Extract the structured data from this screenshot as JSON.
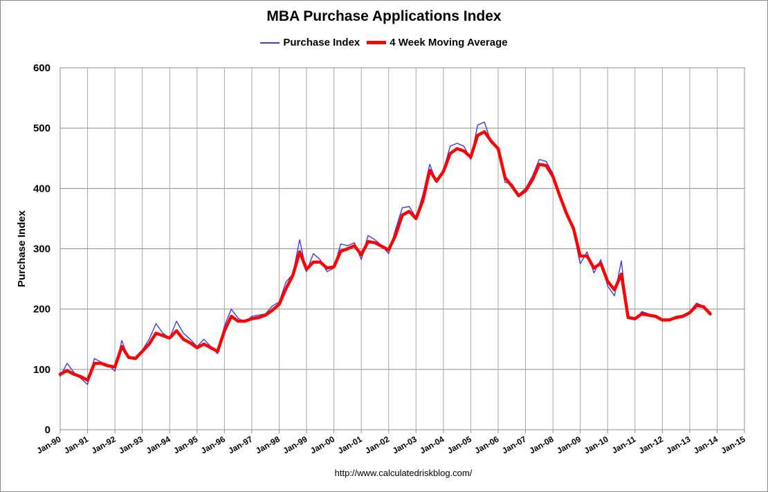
{
  "chart_data": {
    "type": "line",
    "title": "MBA Purchase Applications Index",
    "ylabel": "Purchase Index",
    "xlabel": "",
    "ylim": [
      0,
      600
    ],
    "yticks": [
      0,
      100,
      200,
      300,
      400,
      500,
      600
    ],
    "xlim": [
      1990.0,
      2015.0
    ],
    "xtick_labels": [
      "Jan-90",
      "Jan-91",
      "Jan-92",
      "Jan-93",
      "Jan-94",
      "Jan-95",
      "Jan-96",
      "Jan-97",
      "Jan-98",
      "Jan-99",
      "Jan-00",
      "Jan-01",
      "Jan-02",
      "Jan-03",
      "Jan-04",
      "Jan-05",
      "Jan-06",
      "Jan-07",
      "Jan-08",
      "Jan-09",
      "Jan-10",
      "Jan-11",
      "Jan-12",
      "Jan-13",
      "Jan-14",
      "Jan-15"
    ],
    "grid": true,
    "legend_position": "top-center",
    "source": "http://www.calculatedriskblog.com/",
    "x": [
      1990.0,
      1990.25,
      1990.5,
      1990.75,
      1991.0,
      1991.25,
      1991.5,
      1991.75,
      1992.0,
      1992.25,
      1992.5,
      1992.75,
      1993.0,
      1993.25,
      1993.5,
      1993.75,
      1994.0,
      1994.25,
      1994.5,
      1994.75,
      1995.0,
      1995.25,
      1995.5,
      1995.75,
      1996.0,
      1996.25,
      1996.5,
      1996.75,
      1997.0,
      1997.25,
      1997.5,
      1997.75,
      1998.0,
      1998.25,
      1998.5,
      1998.75,
      1999.0,
      1999.25,
      1999.5,
      1999.75,
      2000.0,
      2000.25,
      2000.5,
      2000.75,
      2001.0,
      2001.25,
      2001.5,
      2001.75,
      2002.0,
      2002.25,
      2002.5,
      2002.75,
      2003.0,
      2003.25,
      2003.5,
      2003.75,
      2004.0,
      2004.25,
      2004.5,
      2004.75,
      2005.0,
      2005.25,
      2005.5,
      2005.75,
      2006.0,
      2006.25,
      2006.5,
      2006.75,
      2007.0,
      2007.25,
      2007.5,
      2007.75,
      2008.0,
      2008.25,
      2008.5,
      2008.75,
      2009.0,
      2009.25,
      2009.5,
      2009.75,
      2010.0,
      2010.25,
      2010.5,
      2010.75,
      2011.0,
      2011.25,
      2011.5,
      2011.75,
      2012.0,
      2012.25,
      2012.5,
      2012.75,
      2013.0,
      2013.25,
      2013.5,
      2013.75
    ],
    "series": [
      {
        "name": "Purchase Index",
        "color": "#3a3ae6",
        "values": [
          88,
          110,
          95,
          85,
          75,
          118,
          112,
          108,
          97,
          148,
          118,
          120,
          132,
          150,
          176,
          160,
          152,
          180,
          160,
          150,
          138,
          150,
          138,
          126,
          172,
          200,
          185,
          178,
          188,
          190,
          192,
          205,
          212,
          245,
          258,
          315,
          262,
          292,
          282,
          262,
          268,
          308,
          305,
          310,
          282,
          322,
          315,
          305,
          292,
          332,
          368,
          370,
          352,
          390,
          440,
          410,
          430,
          470,
          475,
          470,
          448,
          505,
          510,
          475,
          468,
          410,
          408,
          390,
          400,
          420,
          448,
          445,
          425,
          390,
          360,
          330,
          275,
          295,
          260,
          282,
          238,
          222,
          280,
          185,
          182,
          196,
          192,
          188,
          180,
          182,
          188,
          190,
          196,
          210,
          205,
          195
        ]
      },
      {
        "name": "4 Week Moving Average",
        "color": "#ff0000",
        "values": [
          92,
          98,
          92,
          88,
          82,
          110,
          110,
          106,
          104,
          138,
          120,
          118,
          130,
          142,
          160,
          156,
          152,
          164,
          150,
          144,
          136,
          142,
          136,
          130,
          164,
          188,
          180,
          180,
          184,
          186,
          190,
          198,
          208,
          234,
          256,
          295,
          266,
          278,
          278,
          268,
          270,
          296,
          300,
          305,
          290,
          312,
          310,
          304,
          298,
          322,
          356,
          362,
          350,
          380,
          430,
          412,
          428,
          458,
          466,
          462,
          452,
          488,
          494,
          478,
          466,
          418,
          404,
          388,
          396,
          414,
          440,
          438,
          420,
          388,
          358,
          334,
          288,
          288,
          268,
          276,
          246,
          232,
          258,
          186,
          184,
          192,
          190,
          188,
          182,
          182,
          186,
          188,
          194,
          206,
          204,
          192
        ]
      }
    ]
  }
}
